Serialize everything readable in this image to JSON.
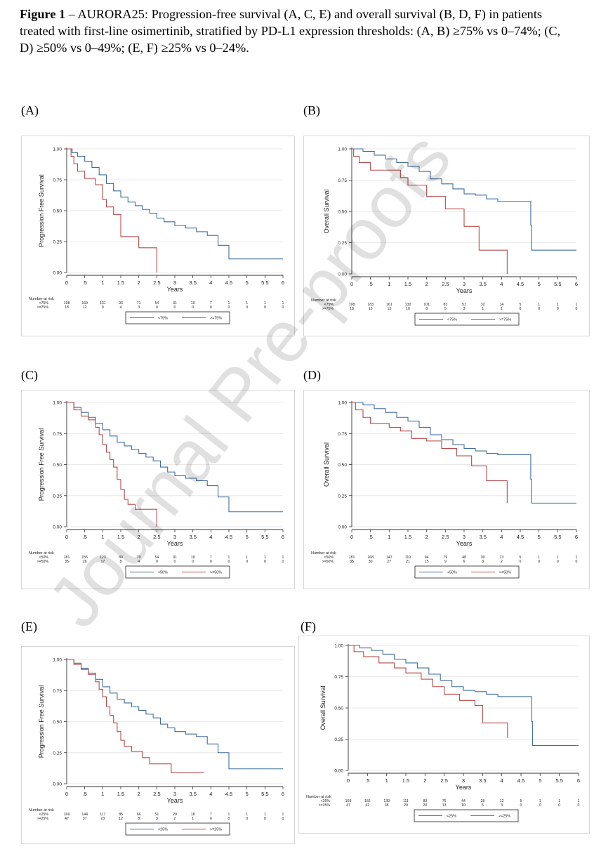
{
  "caption": {
    "bold": "Figure 1",
    "text": " – AURORA25: Progression-free survival (A, C, E) and overall survival (B, D, F) in patients treated with first-line osimertinib, stratified by PD-L1 expression thresholds: (A, B) ≥75% vs 0–74%; (C, D) ≥50% vs 0–49%; (E, F) ≥25% vs 0–24%."
  },
  "watermark": "Journal Pre-proofs",
  "colors": {
    "blue": "#3f6d9c",
    "red": "#b54a4a",
    "axis": "#333333"
  },
  "chart_data": [
    {
      "type": "line",
      "label": "(A)",
      "ylabel": "Progression Free Survival",
      "xlabel": "Years",
      "xlim": [
        0,
        6
      ],
      "ylim": [
        0,
        1
      ],
      "x_ticks": [
        "0",
        ".5",
        "1",
        "1.5",
        "2",
        "2.5",
        "3",
        "3.5",
        "4",
        "4.5",
        "5",
        "5.5",
        "6"
      ],
      "y_ticks": [
        "0.00",
        "0.25",
        "0.50",
        "0.75",
        "1.00"
      ],
      "risk_title": "Number at risk",
      "series": [
        {
          "name": "<75%",
          "color": "blue",
          "x": [
            0,
            0.15,
            0.3,
            0.5,
            0.7,
            0.9,
            1.1,
            1.3,
            1.5,
            1.7,
            1.9,
            2.1,
            2.3,
            2.5,
            2.7,
            3.0,
            3.3,
            3.6,
            3.9,
            4.2,
            4.5,
            6.0
          ],
          "y": [
            1.0,
            0.97,
            0.94,
            0.9,
            0.85,
            0.79,
            0.72,
            0.66,
            0.61,
            0.57,
            0.54,
            0.51,
            0.48,
            0.44,
            0.41,
            0.38,
            0.36,
            0.33,
            0.3,
            0.22,
            0.11,
            0.11
          ],
          "risk": [
            "198",
            "169",
            "131",
            "93",
            "71",
            "54",
            "31",
            "19",
            "7",
            "1",
            "1",
            "1",
            "1"
          ]
        },
        {
          "name": ">=75%",
          "color": "red",
          "x": [
            0,
            0.12,
            0.2,
            0.3,
            0.5,
            0.8,
            1.0,
            1.1,
            1.3,
            1.5,
            2.0,
            2.5
          ],
          "y": [
            1.0,
            0.94,
            0.88,
            0.82,
            0.76,
            0.71,
            0.59,
            0.53,
            0.47,
            0.29,
            0.2,
            0.0
          ],
          "risk": [
            "18",
            "12",
            "9",
            "4",
            "3",
            "0",
            "0",
            "0",
            "0",
            "0",
            "0",
            "0",
            "0"
          ]
        }
      ]
    },
    {
      "type": "line",
      "label": "(B)",
      "ylabel": "Overall Survival",
      "xlabel": "Years",
      "xlim": [
        0,
        6
      ],
      "ylim": [
        0,
        1
      ],
      "x_ticks": [
        "0",
        ".5",
        "1",
        "1.5",
        "2",
        "2.5",
        "3",
        "3.5",
        "4",
        "4.5",
        "5",
        "5.5",
        "6"
      ],
      "y_ticks": [
        "0.00",
        "0.25",
        "0.50",
        "0.75",
        "1.00"
      ],
      "risk_title": "Number at risk",
      "series": [
        {
          "name": "<75%",
          "color": "blue",
          "x": [
            0,
            0.3,
            0.6,
            0.9,
            1.2,
            1.5,
            1.8,
            2.1,
            2.4,
            2.7,
            3.0,
            3.3,
            3.6,
            3.9,
            4.2,
            4.78,
            4.8,
            6.0
          ],
          "y": [
            1.0,
            0.98,
            0.95,
            0.92,
            0.89,
            0.86,
            0.82,
            0.76,
            0.72,
            0.68,
            0.64,
            0.63,
            0.6,
            0.58,
            0.58,
            0.39,
            0.19,
            0.19
          ],
          "risk": [
            "198",
            "183",
            "161",
            "130",
            "101",
            "83",
            "51",
            "32",
            "14",
            "5",
            "1",
            "1",
            "1"
          ]
        },
        {
          "name": ">=75%",
          "color": "red",
          "x": [
            0,
            0.05,
            0.2,
            0.5,
            1.3,
            1.5,
            2.0,
            2.5,
            3.0,
            3.4,
            4.0,
            4.15
          ],
          "y": [
            1.0,
            0.94,
            0.89,
            0.83,
            0.77,
            0.71,
            0.62,
            0.52,
            0.38,
            0.19,
            0.19,
            0.0
          ],
          "risk": [
            "18",
            "15",
            "13",
            "10",
            "8",
            "5",
            "3",
            "1",
            "1",
            "0",
            "0",
            "0",
            "0"
          ]
        }
      ]
    },
    {
      "type": "line",
      "label": "(C)",
      "ylabel": "Progression Free Survival",
      "xlabel": "Years",
      "xlim": [
        0,
        6
      ],
      "ylim": [
        0,
        1
      ],
      "x_ticks": [
        "0",
        ".5",
        "1",
        "1.5",
        "2",
        "2.5",
        "3",
        "3.5",
        "4",
        "4.5",
        "5",
        "5.5",
        "6"
      ],
      "y_ticks": [
        "0.00",
        "0.25",
        "0.50",
        "0.75",
        "1.00"
      ],
      "risk_title": "Number at risk",
      "series": [
        {
          "name": "<50%",
          "color": "blue",
          "x": [
            0,
            0.2,
            0.4,
            0.6,
            0.8,
            1.0,
            1.2,
            1.4,
            1.6,
            1.8,
            2.0,
            2.2,
            2.4,
            2.6,
            2.8,
            3.0,
            3.3,
            3.6,
            3.9,
            4.2,
            4.5,
            6.0
          ],
          "y": [
            1.0,
            0.96,
            0.92,
            0.88,
            0.83,
            0.78,
            0.73,
            0.68,
            0.65,
            0.62,
            0.59,
            0.56,
            0.53,
            0.48,
            0.44,
            0.41,
            0.39,
            0.37,
            0.33,
            0.24,
            0.12,
            0.12
          ],
          "risk": [
            "181",
            "155",
            "123",
            "89",
            "70",
            "54",
            "31",
            "19",
            "7",
            "1",
            "1",
            "1",
            "1"
          ]
        },
        {
          "name": ">=50%",
          "color": "red",
          "x": [
            0,
            0.2,
            0.4,
            0.6,
            0.8,
            0.9,
            1.0,
            1.1,
            1.2,
            1.3,
            1.4,
            1.5,
            1.6,
            1.7,
            1.9,
            2.2,
            2.5
          ],
          "y": [
            1.0,
            0.94,
            0.89,
            0.86,
            0.8,
            0.74,
            0.66,
            0.6,
            0.54,
            0.48,
            0.38,
            0.3,
            0.22,
            0.18,
            0.14,
            0.14,
            0.0
          ],
          "risk": [
            "35",
            "26",
            "17",
            "8",
            "4",
            "0",
            "0",
            "0",
            "0",
            "0",
            "0",
            "0",
            "0"
          ]
        }
      ]
    },
    {
      "type": "line",
      "label": "(D)",
      "ylabel": "Overall Survival",
      "xlabel": "Years",
      "xlim": [
        0,
        6
      ],
      "ylim": [
        0,
        1
      ],
      "x_ticks": [
        "0",
        ".5",
        "1",
        "1.5",
        "2",
        "2.5",
        "3",
        "3.5",
        "4",
        "4.5",
        "5",
        "5.5",
        "6"
      ],
      "y_ticks": [
        "0.00",
        "0.25",
        "0.50",
        "0.75",
        "1.00"
      ],
      "risk_title": "Number at risk",
      "series": [
        {
          "name": "<50%",
          "color": "blue",
          "x": [
            0,
            0.3,
            0.6,
            0.9,
            1.2,
            1.5,
            1.8,
            2.1,
            2.4,
            2.7,
            3.0,
            3.3,
            3.6,
            3.9,
            4.2,
            4.78,
            4.8,
            6.0
          ],
          "y": [
            1.0,
            0.98,
            0.95,
            0.92,
            0.88,
            0.85,
            0.8,
            0.74,
            0.7,
            0.66,
            0.63,
            0.61,
            0.59,
            0.58,
            0.58,
            0.38,
            0.19,
            0.19
          ],
          "risk": [
            "181",
            "168",
            "147",
            "119",
            "94",
            "79",
            "48",
            "30",
            "13",
            "5",
            "1",
            "1",
            "1"
          ]
        },
        {
          "name": ">=50%",
          "color": "red",
          "x": [
            0,
            0.1,
            0.3,
            0.5,
            1.0,
            1.3,
            1.6,
            2.0,
            2.4,
            2.8,
            3.2,
            3.6,
            4.0,
            4.15
          ],
          "y": [
            1.0,
            0.94,
            0.88,
            0.83,
            0.8,
            0.77,
            0.71,
            0.69,
            0.63,
            0.57,
            0.49,
            0.37,
            0.37,
            0.19
          ],
          "risk": [
            "35",
            "30",
            "27",
            "21",
            "15",
            "9",
            "6",
            "3",
            "2",
            "0",
            "0",
            "0",
            "0"
          ]
        }
      ]
    },
    {
      "type": "line",
      "label": "(E)",
      "ylabel": "Progression Free Survival",
      "xlabel": "Years",
      "xlim": [
        0,
        6
      ],
      "ylim": [
        0,
        1
      ],
      "x_ticks": [
        "0",
        ".5",
        "1",
        "1.5",
        "2",
        "2.5",
        "3",
        "3.5",
        "4",
        "4.5",
        "5",
        "5.5",
        "6"
      ],
      "y_ticks": [
        "0.00",
        "0.25",
        "0.50",
        "0.75",
        "1.00"
      ],
      "risk_title": "Number at risk",
      "series": [
        {
          "name": "<25%",
          "color": "blue",
          "x": [
            0,
            0.2,
            0.4,
            0.6,
            0.8,
            1.0,
            1.2,
            1.4,
            1.6,
            1.8,
            2.0,
            2.2,
            2.4,
            2.6,
            2.8,
            3.0,
            3.3,
            3.6,
            3.9,
            4.2,
            4.5,
            6.0
          ],
          "y": [
            1.0,
            0.97,
            0.93,
            0.89,
            0.84,
            0.78,
            0.73,
            0.68,
            0.65,
            0.62,
            0.59,
            0.56,
            0.53,
            0.48,
            0.45,
            0.42,
            0.4,
            0.38,
            0.32,
            0.25,
            0.12,
            0.12
          ],
          "risk": [
            "169",
            "144",
            "117",
            "85",
            "66",
            "51",
            "29",
            "18",
            "7",
            "1",
            "1",
            "1",
            "1"
          ]
        },
        {
          "name": ">=25%",
          "color": "red",
          "x": [
            0,
            0.2,
            0.4,
            0.6,
            0.8,
            0.9,
            1.0,
            1.1,
            1.2,
            1.3,
            1.4,
            1.5,
            1.6,
            1.8,
            2.1,
            2.3,
            2.9,
            3.8
          ],
          "y": [
            1.0,
            0.96,
            0.92,
            0.88,
            0.82,
            0.76,
            0.7,
            0.62,
            0.55,
            0.49,
            0.42,
            0.35,
            0.3,
            0.26,
            0.21,
            0.16,
            0.09,
            0.09
          ],
          "risk": [
            "47",
            "37",
            "23",
            "12",
            "8",
            "3",
            "2",
            "1",
            "0",
            "0",
            "0",
            "0",
            "0"
          ]
        }
      ]
    },
    {
      "type": "line",
      "label": "(F)",
      "ylabel": "Overall Survival",
      "xlabel": "Years",
      "xlim": [
        0,
        6
      ],
      "ylim": [
        0,
        1
      ],
      "x_ticks": [
        "0",
        ".5",
        "1",
        "1.5",
        "2",
        "2.5",
        "3",
        "3.5",
        "4",
        "4.5",
        "5",
        "5.5",
        "6"
      ],
      "y_ticks": [
        "0.00",
        "0.25",
        "0.50",
        "0.75",
        "1.00"
      ],
      "risk_title": "Number at risk",
      "series": [
        {
          "name": "<25%",
          "color": "blue",
          "x": [
            0,
            0.3,
            0.6,
            0.9,
            1.2,
            1.5,
            1.8,
            2.1,
            2.4,
            2.7,
            3.0,
            3.3,
            3.6,
            3.9,
            4.2,
            4.78,
            4.8,
            6.0
          ],
          "y": [
            1.0,
            0.98,
            0.96,
            0.93,
            0.89,
            0.86,
            0.82,
            0.77,
            0.72,
            0.67,
            0.64,
            0.63,
            0.61,
            0.59,
            0.59,
            0.39,
            0.2,
            0.2
          ],
          "risk": [
            "169",
            "156",
            "139",
            "111",
            "89",
            "75",
            "44",
            "28",
            "12",
            "5",
            "1",
            "1",
            "1"
          ]
        },
        {
          "name": ">=25%",
          "color": "red",
          "x": [
            0,
            0.15,
            0.4,
            0.8,
            1.2,
            1.5,
            1.9,
            2.2,
            2.5,
            2.9,
            3.3,
            3.5,
            4.0,
            4.15
          ],
          "y": [
            1.0,
            0.95,
            0.91,
            0.86,
            0.82,
            0.78,
            0.73,
            0.67,
            0.61,
            0.56,
            0.52,
            0.38,
            0.38,
            0.26
          ],
          "risk": [
            "47",
            "42",
            "35",
            "29",
            "20",
            "13",
            "10",
            "5",
            "3",
            "0",
            "0",
            "0",
            "0"
          ]
        }
      ]
    }
  ]
}
